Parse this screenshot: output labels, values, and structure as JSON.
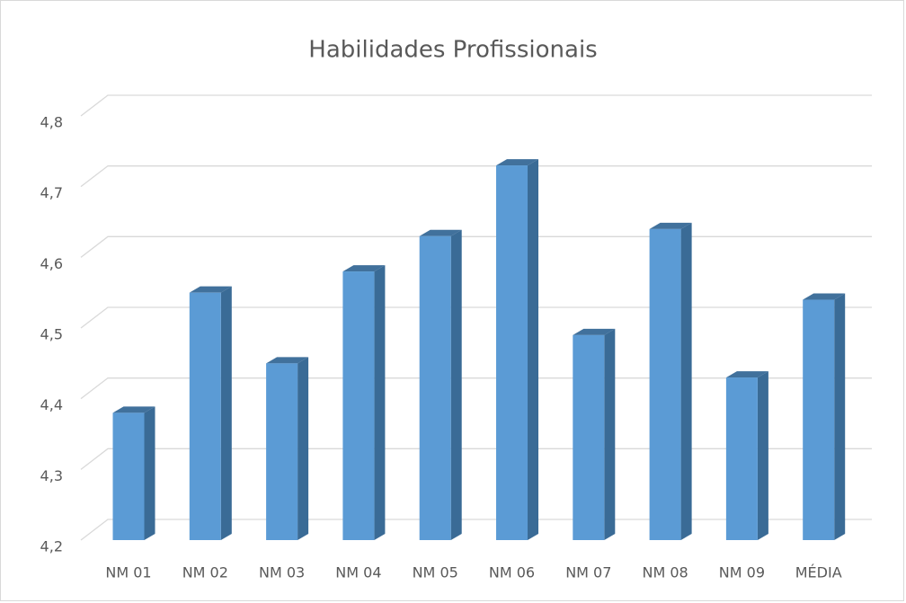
{
  "chart_data": {
    "type": "bar3d",
    "title": "Habilidades Profissionais",
    "categories": [
      "NM 01",
      "NM 02",
      "NM 03",
      "NM 04",
      "NM 05",
      "NM 06",
      "NM 07",
      "NM 08",
      "NM 09",
      "MÉDIA"
    ],
    "values": [
      4.38,
      4.55,
      4.45,
      4.58,
      4.63,
      4.73,
      4.49,
      4.64,
      4.43,
      4.54
    ],
    "color": "#5b9bd5",
    "ylim": [
      4.2,
      4.8
    ],
    "yticks": [
      {
        "value": 4.2,
        "label": "4,2"
      },
      {
        "value": 4.3,
        "label": "4,3"
      },
      {
        "value": 4.4,
        "label": "4,4"
      },
      {
        "value": 4.5,
        "label": "4,5"
      },
      {
        "value": 4.6,
        "label": "4,6"
      },
      {
        "value": 4.7,
        "label": "4,7"
      },
      {
        "value": 4.8,
        "label": "4,8"
      }
    ],
    "grid": true
  }
}
